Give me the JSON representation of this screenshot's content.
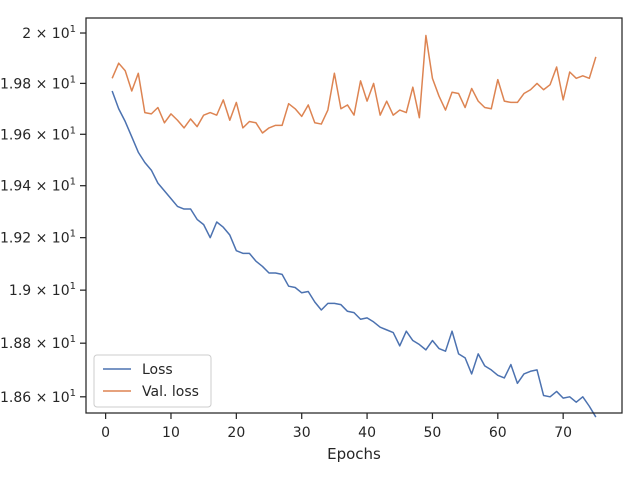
{
  "chart_data": {
    "type": "line",
    "title": "",
    "xlabel": "Epochs",
    "ylabel": "",
    "xlim": [
      -3,
      79
    ],
    "ylim": [
      18.54,
      20.06
    ],
    "yscale": "log",
    "grid": false,
    "legend_position": "lower-left",
    "x_ticks": [
      0,
      10,
      20,
      30,
      40,
      50,
      60,
      70
    ],
    "x_tick_labels": [
      "0",
      "10",
      "20",
      "30",
      "40",
      "50",
      "60",
      "70"
    ],
    "y_ticks": [
      18.6,
      18.8,
      19.0,
      19.2,
      19.4,
      19.6,
      19.8,
      20.0
    ],
    "y_tick_labels": [
      {
        "mantissa": "1.86",
        "sep": " × ",
        "base": "10",
        "exp": "1"
      },
      {
        "mantissa": "1.88",
        "sep": " × ",
        "base": "10",
        "exp": "1"
      },
      {
        "mantissa": "1.9",
        "sep": " × ",
        "base": "10",
        "exp": "1"
      },
      {
        "mantissa": "1.92",
        "sep": " × ",
        "base": "10",
        "exp": "1"
      },
      {
        "mantissa": "1.94",
        "sep": " × ",
        "base": "10",
        "exp": "1"
      },
      {
        "mantissa": "1.96",
        "sep": " × ",
        "base": "10",
        "exp": "1"
      },
      {
        "mantissa": "1.98",
        "sep": " × ",
        "base": "10",
        "exp": "1"
      },
      {
        "mantissa": "2",
        "sep": " × ",
        "base": "10",
        "exp": "1"
      }
    ],
    "series": [
      {
        "name": "Loss",
        "color": "#4c72b0",
        "x": [
          1,
          2,
          3,
          4,
          5,
          6,
          7,
          8,
          9,
          10,
          11,
          12,
          13,
          14,
          15,
          16,
          17,
          18,
          19,
          20,
          21,
          22,
          23,
          24,
          25,
          26,
          27,
          28,
          29,
          30,
          31,
          32,
          33,
          34,
          35,
          36,
          37,
          38,
          39,
          40,
          41,
          42,
          43,
          44,
          45,
          46,
          47,
          48,
          49,
          50,
          51,
          52,
          53,
          54,
          55,
          56,
          57,
          58,
          59,
          60,
          61,
          62,
          63,
          64,
          65,
          66,
          67,
          68,
          69,
          70,
          71,
          72,
          73,
          74,
          75
        ],
        "values": [
          19.77,
          19.7,
          19.65,
          19.59,
          19.53,
          19.49,
          19.46,
          19.41,
          19.38,
          19.35,
          19.32,
          19.31,
          19.31,
          19.27,
          19.25,
          19.2,
          19.26,
          19.24,
          19.21,
          19.15,
          19.14,
          19.14,
          19.11,
          19.09,
          19.065,
          19.065,
          19.06,
          19.015,
          19.01,
          18.99,
          18.995,
          18.955,
          18.925,
          18.95,
          18.95,
          18.945,
          18.92,
          18.915,
          18.89,
          18.895,
          18.88,
          18.86,
          18.85,
          18.84,
          18.79,
          18.845,
          18.81,
          18.795,
          18.775,
          18.81,
          18.78,
          18.77,
          18.845,
          18.76,
          18.745,
          18.685,
          18.76,
          18.715,
          18.7,
          18.68,
          18.67,
          18.72,
          18.65,
          18.685,
          18.695,
          18.7,
          18.605,
          18.6,
          18.62,
          18.595,
          18.6,
          18.58,
          18.6,
          18.565,
          18.525
        ]
      },
      {
        "name": "Val. loss",
        "color": "#dd8452",
        "x": [
          1,
          2,
          3,
          4,
          5,
          6,
          7,
          8,
          9,
          10,
          11,
          12,
          13,
          14,
          15,
          16,
          17,
          18,
          19,
          20,
          21,
          22,
          23,
          24,
          25,
          26,
          27,
          28,
          29,
          30,
          31,
          32,
          33,
          34,
          35,
          36,
          37,
          38,
          39,
          40,
          41,
          42,
          43,
          44,
          45,
          46,
          47,
          48,
          49,
          50,
          51,
          52,
          53,
          54,
          55,
          56,
          57,
          58,
          59,
          60,
          61,
          62,
          63,
          64,
          65,
          66,
          67,
          68,
          69,
          70,
          71,
          72,
          73,
          74,
          75
        ],
        "values": [
          19.82,
          19.88,
          19.85,
          19.77,
          19.84,
          19.685,
          19.68,
          19.705,
          19.645,
          19.68,
          19.655,
          19.625,
          19.66,
          19.63,
          19.675,
          19.685,
          19.675,
          19.735,
          19.655,
          19.725,
          19.625,
          19.65,
          19.645,
          19.605,
          19.625,
          19.635,
          19.635,
          19.72,
          19.7,
          19.67,
          19.715,
          19.645,
          19.64,
          19.695,
          19.84,
          19.7,
          19.715,
          19.675,
          19.81,
          19.73,
          19.8,
          19.675,
          19.73,
          19.675,
          19.695,
          19.685,
          19.785,
          19.665,
          19.99,
          19.82,
          19.75,
          19.695,
          19.765,
          19.76,
          19.705,
          19.78,
          19.73,
          19.705,
          19.7,
          19.815,
          19.73,
          19.725,
          19.725,
          19.76,
          19.775,
          19.8,
          19.775,
          19.795,
          19.865,
          19.735,
          19.845,
          19.82,
          19.83,
          19.82,
          19.905
        ]
      }
    ]
  }
}
